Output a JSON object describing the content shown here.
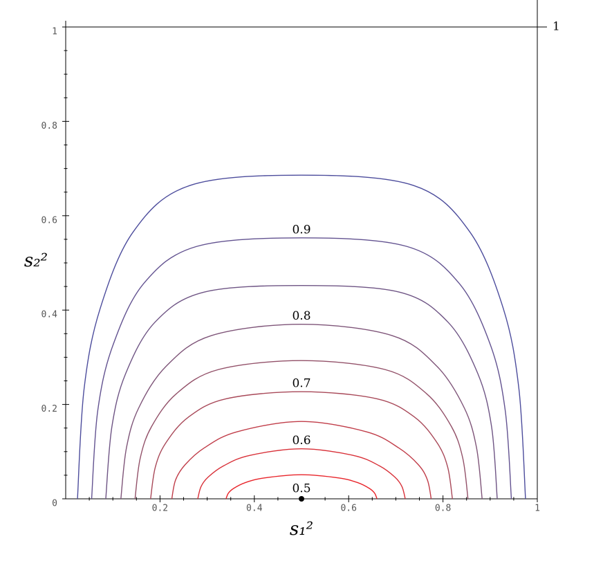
{
  "chart_data": {
    "type": "contour",
    "xlabel": "s₁²",
    "ylabel": "s₂²",
    "xlim": [
      0,
      1
    ],
    "ylim": [
      0,
      1
    ],
    "xticks": [
      0.2,
      0.4,
      0.6,
      0.8,
      1
    ],
    "yticks": [
      0,
      0.2,
      0.4,
      0.6,
      0.8,
      1
    ],
    "y2ticks": [
      1
    ],
    "xminorticks": [
      0.05,
      0.1,
      0.15,
      0.25,
      0.3,
      0.35,
      0.45,
      0.5,
      0.55,
      0.65,
      0.7,
      0.75,
      0.85,
      0.9,
      0.95
    ],
    "yminorticks": [
      0.05,
      0.1,
      0.15,
      0.25,
      0.3,
      0.35,
      0.45,
      0.5,
      0.55,
      0.65,
      0.7,
      0.75,
      0.85,
      0.9,
      0.95
    ],
    "point": {
      "x": 0.5,
      "y": 0,
      "level": 0.5,
      "color": "#000000"
    },
    "series": [
      {
        "level": 0.55,
        "labeled": false,
        "color": "#e8242a",
        "x": [
          0.34,
          0.345,
          0.356,
          0.38,
          0.42,
          0.5,
          0.58,
          0.62,
          0.644,
          0.655,
          0.66
        ],
        "y": [
          0,
          0.012,
          0.022,
          0.034,
          0.044,
          0.051,
          0.044,
          0.034,
          0.022,
          0.012,
          0
        ]
      },
      {
        "level": 0.6,
        "labeled": true,
        "color": "#d83038",
        "x": [
          0.28,
          0.287,
          0.302,
          0.335,
          0.39,
          0.5,
          0.61,
          0.665,
          0.698,
          0.713,
          0.72
        ],
        "y": [
          0,
          0.026,
          0.046,
          0.07,
          0.092,
          0.106,
          0.092,
          0.07,
          0.046,
          0.026,
          0
        ]
      },
      {
        "level": 0.65,
        "labeled": false,
        "color": "#c03c48",
        "x": [
          0.225,
          0.233,
          0.253,
          0.294,
          0.363,
          0.5,
          0.638,
          0.706,
          0.748,
          0.767,
          0.775
        ],
        "y": [
          0,
          0.04,
          0.072,
          0.108,
          0.142,
          0.164,
          0.142,
          0.108,
          0.072,
          0.04,
          0
        ]
      },
      {
        "level": 0.7,
        "labeled": true,
        "color": "#a84858",
        "x": [
          0.18,
          0.19,
          0.212,
          0.26,
          0.34,
          0.5,
          0.66,
          0.74,
          0.788,
          0.81,
          0.82
        ],
        "y": [
          0,
          0.067,
          0.118,
          0.173,
          0.212,
          0.227,
          0.212,
          0.173,
          0.118,
          0.067,
          0
        ]
      },
      {
        "level": 0.75,
        "labeled": false,
        "color": "#925068",
        "x": [
          0.147,
          0.158,
          0.182,
          0.235,
          0.324,
          0.5,
          0.677,
          0.765,
          0.818,
          0.842,
          0.853
        ],
        "y": [
          0,
          0.086,
          0.153,
          0.223,
          0.274,
          0.293,
          0.274,
          0.223,
          0.153,
          0.086,
          0
        ]
      },
      {
        "level": 0.8,
        "labeled": true,
        "color": "#7e5478",
        "x": [
          0.117,
          0.129,
          0.155,
          0.213,
          0.309,
          0.5,
          0.692,
          0.787,
          0.845,
          0.871,
          0.883
        ],
        "y": [
          0,
          0.109,
          0.193,
          0.281,
          0.346,
          0.37,
          0.346,
          0.281,
          0.193,
          0.109,
          0
        ]
      },
      {
        "level": 0.85,
        "labeled": false,
        "color": "#6e5484",
        "x": [
          0.085,
          0.098,
          0.127,
          0.189,
          0.293,
          0.5,
          0.708,
          0.811,
          0.874,
          0.903,
          0.915
        ],
        "y": [
          0,
          0.153,
          0.265,
          0.374,
          0.438,
          0.452,
          0.438,
          0.374,
          0.265,
          0.153,
          0
        ]
      },
      {
        "level": 0.9,
        "labeled": true,
        "color": "#625290",
        "x": [
          0.055,
          0.068,
          0.1,
          0.166,
          0.278,
          0.5,
          0.723,
          0.834,
          0.901,
          0.932,
          0.945
        ],
        "y": [
          0,
          0.187,
          0.325,
          0.457,
          0.535,
          0.553,
          0.535,
          0.457,
          0.325,
          0.187,
          0
        ]
      },
      {
        "level": 0.95,
        "labeled": false,
        "color": "#4c4c9c",
        "x": [
          0.025,
          0.039,
          0.073,
          0.144,
          0.263,
          0.5,
          0.738,
          0.856,
          0.928,
          0.961,
          0.975
        ],
        "y": [
          0,
          0.233,
          0.403,
          0.567,
          0.664,
          0.686,
          0.664,
          0.567,
          0.403,
          0.233,
          0
        ]
      }
    ]
  }
}
